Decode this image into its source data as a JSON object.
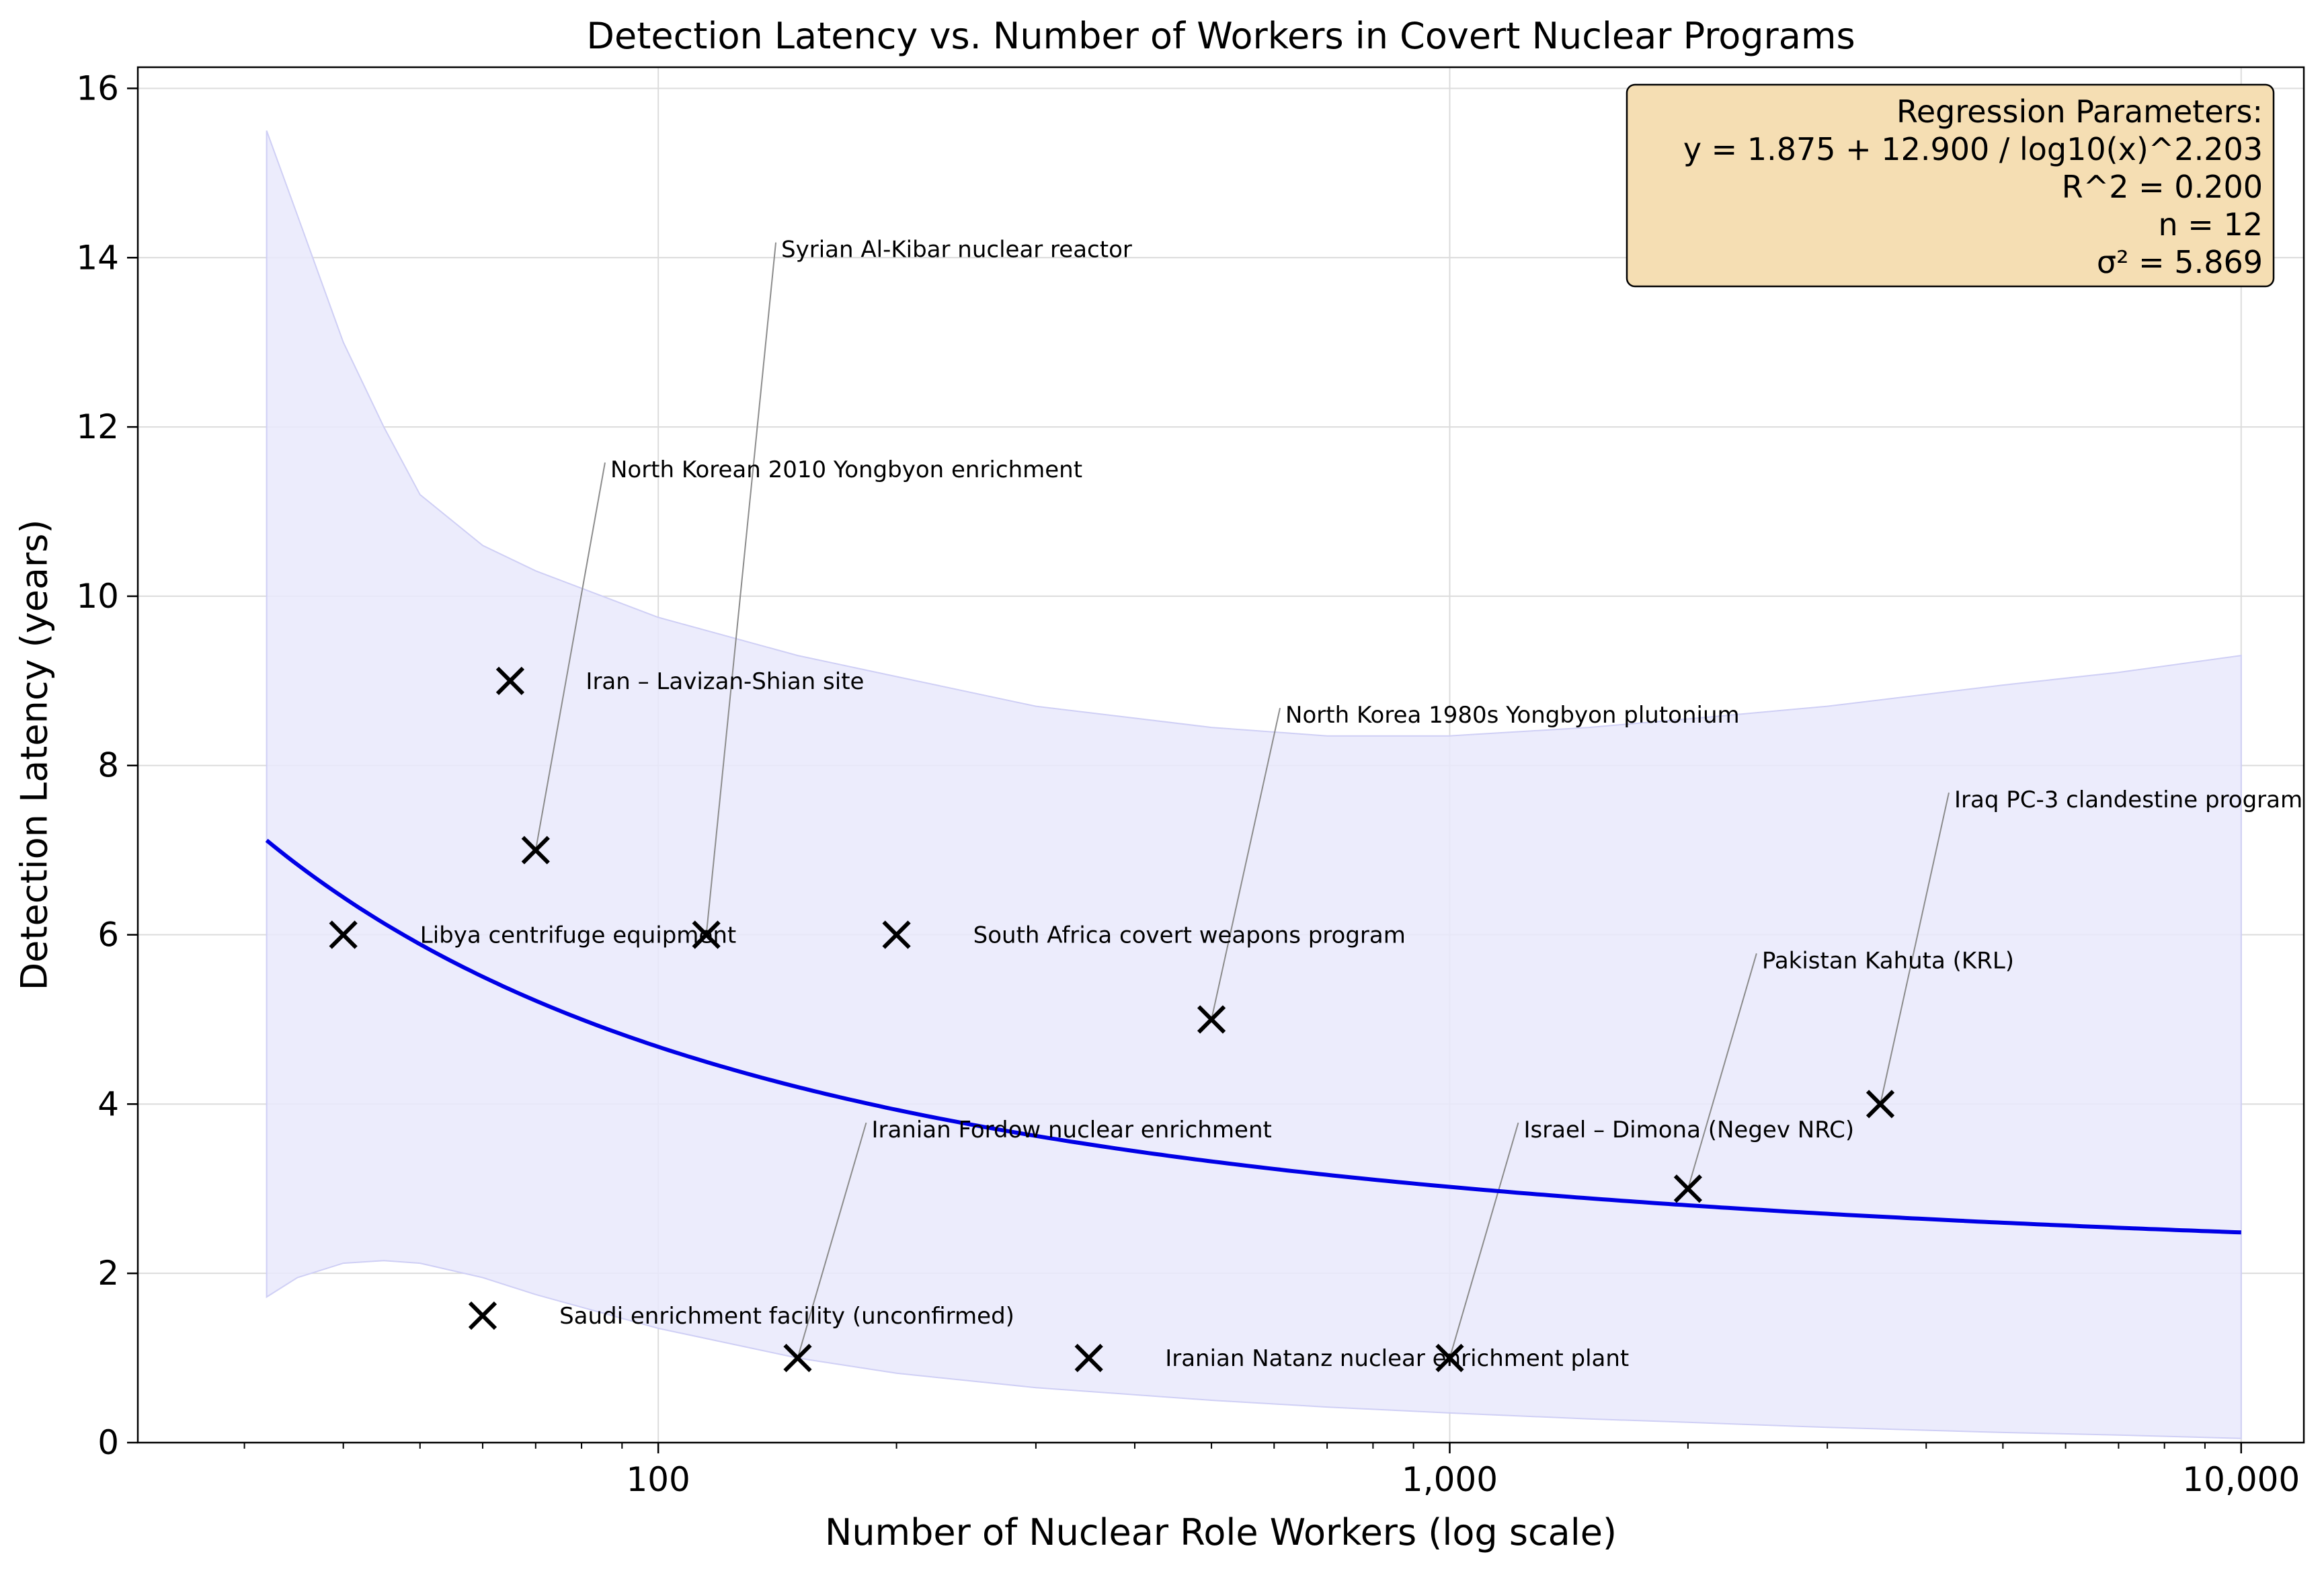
{
  "chart_data": {
    "type": "scatter",
    "title": "Detection Latency vs. Number of Workers in Covert Nuclear Programs",
    "xlabel": "Number of Nuclear Role Workers (log scale)",
    "ylabel": "Detection Latency (years)",
    "x_scale": "log",
    "xlim": [
      22,
      12000
    ],
    "ylim": [
      0,
      16.25
    ],
    "x_ticks": [
      {
        "value": 100,
        "label": "100"
      },
      {
        "value": 1000,
        "label": "1,000"
      },
      {
        "value": 10000,
        "label": "10,000"
      }
    ],
    "y_ticks": [
      {
        "value": 0,
        "label": "0"
      },
      {
        "value": 2,
        "label": "2"
      },
      {
        "value": 4,
        "label": "4"
      },
      {
        "value": 6,
        "label": "6"
      },
      {
        "value": 8,
        "label": "8"
      },
      {
        "value": 10,
        "label": "10"
      },
      {
        "value": 12,
        "label": "12"
      },
      {
        "value": 14,
        "label": "14"
      },
      {
        "value": 16,
        "label": "16"
      }
    ],
    "grid": true,
    "points": [
      {
        "x": 40,
        "y": 6
      },
      {
        "x": 60,
        "y": 1.5
      },
      {
        "x": 65,
        "y": 9
      },
      {
        "x": 70,
        "y": 7
      },
      {
        "x": 115,
        "y": 6
      },
      {
        "x": 150,
        "y": 1
      },
      {
        "x": 200,
        "y": 6
      },
      {
        "x": 350,
        "y": 1
      },
      {
        "x": 500,
        "y": 5
      },
      {
        "x": 1000,
        "y": 1
      },
      {
        "x": 2000,
        "y": 3
      },
      {
        "x": 3500,
        "y": 4
      }
    ],
    "annotations": [
      {
        "text": "Libya centrifuge equipment",
        "point_x": 40,
        "point_y": 6,
        "text_x": 50,
        "text_y": 6,
        "leader": false
      },
      {
        "text": "Saudi enrichment facility (unconfirmed)",
        "point_x": 60,
        "point_y": 1.5,
        "text_x": 75,
        "text_y": 1.5,
        "leader": false
      },
      {
        "text": "Iran – Lavizan-Shian site",
        "point_x": 65,
        "point_y": 9,
        "text_x": 81,
        "text_y": 9,
        "leader": false
      },
      {
        "text": "North Korean 2010 Yongbyon enrichment",
        "point_x": 70,
        "point_y": 7,
        "text_x": 87,
        "text_y": 11.5,
        "leader": true
      },
      {
        "text": "Syrian Al-Kibar nuclear reactor",
        "point_x": 115,
        "point_y": 6,
        "text_x": 143,
        "text_y": 14.1,
        "leader": true
      },
      {
        "text": "Iranian Fordow nuclear enrichment",
        "point_x": 150,
        "point_y": 1,
        "text_x": 186,
        "text_y": 3.7,
        "leader": true
      },
      {
        "text": "South Africa covert weapons program",
        "point_x": 200,
        "point_y": 6,
        "text_x": 250,
        "text_y": 6,
        "leader": false
      },
      {
        "text": "Iranian Natanz nuclear enrichment plant",
        "point_x": 350,
        "point_y": 1,
        "text_x": 437,
        "text_y": 1,
        "leader": false
      },
      {
        "text": "North Korea 1980s Yongbyon plutonium",
        "point_x": 500,
        "point_y": 5,
        "text_x": 620,
        "text_y": 8.6,
        "leader": true
      },
      {
        "text": "Israel – Dimona (Negev NRC)",
        "point_x": 1000,
        "point_y": 1,
        "text_x": 1240,
        "text_y": 3.7,
        "leader": true
      },
      {
        "text": "Pakistan Kahuta (KRL)",
        "point_x": 2000,
        "point_y": 3,
        "text_x": 2480,
        "text_y": 5.7,
        "leader": true
      },
      {
        "text": "Iraq PC-3 clandestine program",
        "point_x": 3500,
        "point_y": 4,
        "text_x": 4340,
        "text_y": 7.6,
        "leader": true
      }
    ],
    "regression": {
      "model": "y = a + b / log10(x)^c",
      "a": 1.875,
      "b": 12.9,
      "c": 2.203,
      "x_range": [
        32,
        10000
      ],
      "color": "#0000e6",
      "band_color": "#e9e9fb",
      "band_upper": [
        {
          "x": 32,
          "y": 15.5
        },
        {
          "x": 35,
          "y": 14.5
        },
        {
          "x": 40,
          "y": 13.0
        },
        {
          "x": 45,
          "y": 12.0
        },
        {
          "x": 50,
          "y": 11.2
        },
        {
          "x": 60,
          "y": 10.6
        },
        {
          "x": 70,
          "y": 10.3
        },
        {
          "x": 100,
          "y": 9.75
        },
        {
          "x": 150,
          "y": 9.3
        },
        {
          "x": 200,
          "y": 9.05
        },
        {
          "x": 300,
          "y": 8.7
        },
        {
          "x": 500,
          "y": 8.45
        },
        {
          "x": 700,
          "y": 8.35
        },
        {
          "x": 1000,
          "y": 8.35
        },
        {
          "x": 1500,
          "y": 8.45
        },
        {
          "x": 2000,
          "y": 8.55
        },
        {
          "x": 3000,
          "y": 8.7
        },
        {
          "x": 5000,
          "y": 8.95
        },
        {
          "x": 7000,
          "y": 9.1
        },
        {
          "x": 10000,
          "y": 9.3
        }
      ],
      "band_lower": [
        {
          "x": 32,
          "y": 1.72
        },
        {
          "x": 35,
          "y": 1.95
        },
        {
          "x": 40,
          "y": 2.12
        },
        {
          "x": 45,
          "y": 2.15
        },
        {
          "x": 50,
          "y": 2.12
        },
        {
          "x": 60,
          "y": 1.95
        },
        {
          "x": 70,
          "y": 1.75
        },
        {
          "x": 100,
          "y": 1.35
        },
        {
          "x": 150,
          "y": 1.0
        },
        {
          "x": 200,
          "y": 0.82
        },
        {
          "x": 300,
          "y": 0.65
        },
        {
          "x": 500,
          "y": 0.5
        },
        {
          "x": 700,
          "y": 0.42
        },
        {
          "x": 1000,
          "y": 0.35
        },
        {
          "x": 1500,
          "y": 0.28
        },
        {
          "x": 2000,
          "y": 0.24
        },
        {
          "x": 3000,
          "y": 0.18
        },
        {
          "x": 5000,
          "y": 0.12
        },
        {
          "x": 7000,
          "y": 0.09
        },
        {
          "x": 10000,
          "y": 0.05
        }
      ]
    },
    "legend_box": {
      "placement": "top-right",
      "background": "#f5deb3",
      "lines": [
        "Regression Parameters:",
        "y = 1.875 + 12.900 / log10(x)^2.203",
        "R^2 = 0.200",
        "n = 12",
        "σ² = 5.869"
      ]
    }
  }
}
